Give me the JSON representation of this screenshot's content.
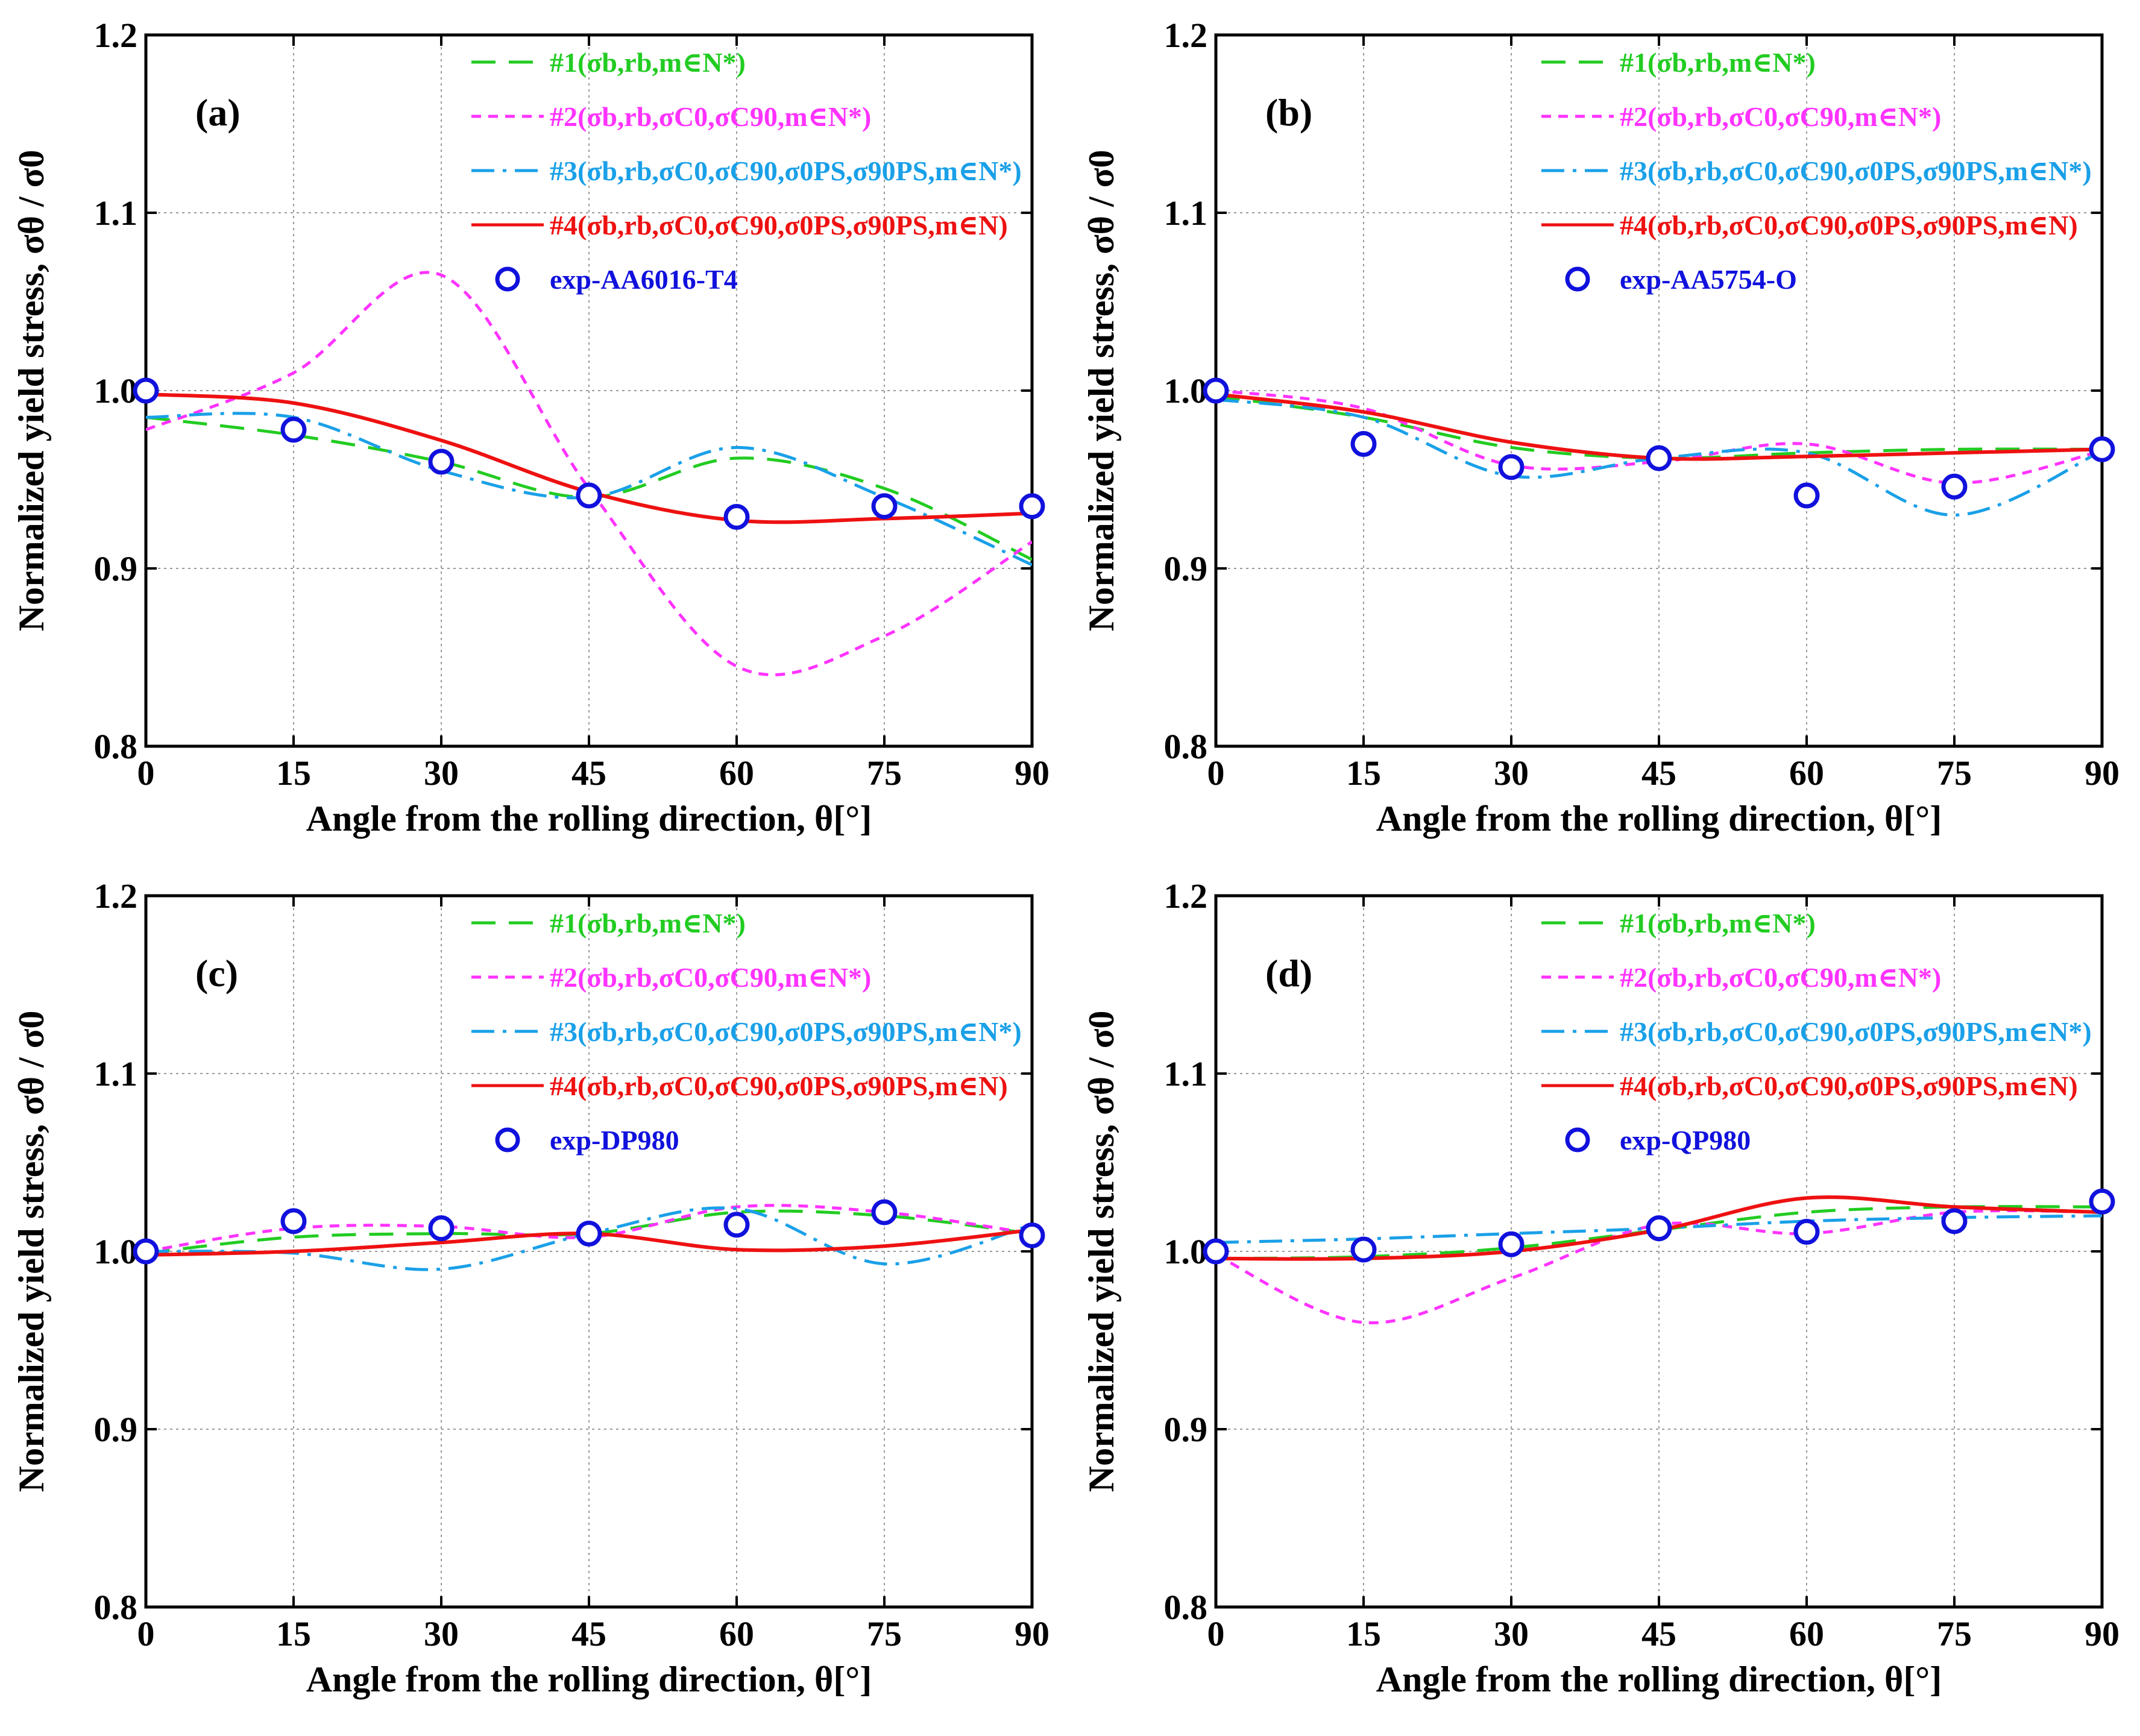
{
  "chart_data": [
    {
      "type": "line",
      "panel_label": "(a)",
      "xlabel": "Angle from the rolling direction, θ[°]",
      "ylabel": "Normalized yield stress, σθ / σ0",
      "xlim": [
        0,
        90
      ],
      "ylim": [
        0.8,
        1.2
      ],
      "xticks": [
        "0",
        "15",
        "30",
        "45",
        "60",
        "75",
        "90"
      ],
      "yticks": [
        "0.8",
        "0.9",
        "1.0",
        "1.1",
        "1.2"
      ],
      "grid": true,
      "legend_position": "top-right",
      "series": [
        {
          "name": "#1(σb,rb,m∈N*)",
          "color": "#22cc22",
          "dash": "dashed",
          "x": [
            0,
            15,
            30,
            45,
            60,
            75,
            90
          ],
          "y": [
            0.985,
            0.975,
            0.96,
            0.94,
            0.962,
            0.945,
            0.905
          ]
        },
        {
          "name": "#2(σb,rb,σC0,σC90,m∈N*)",
          "color": "#ff33ff",
          "dash": "short-dash",
          "x": [
            0,
            15,
            30,
            45,
            60,
            75,
            90
          ],
          "y": [
            0.978,
            1.01,
            1.065,
            0.945,
            0.845,
            0.862,
            0.915
          ]
        },
        {
          "name": "#3(σb,rb,σC0,σC90,σ0PS,σ90PS,m∈N*)",
          "color": "#1aa0e8",
          "dash": "dash-dot",
          "x": [
            0,
            15,
            30,
            45,
            60,
            75,
            90
          ],
          "y": [
            0.985,
            0.985,
            0.955,
            0.94,
            0.968,
            0.94,
            0.902
          ]
        },
        {
          "name": "#4(σb,rb,σC0,σC90,σ0PS,σ90PS,m∈N)",
          "color": "#ee1111",
          "dash": "solid",
          "x": [
            0,
            15,
            30,
            45,
            60,
            75,
            90
          ],
          "y": [
            0.998,
            0.993,
            0.972,
            0.943,
            0.927,
            0.928,
            0.931
          ]
        }
      ],
      "experiment": {
        "name": "exp-AA6016-T4",
        "color": "#1111dd",
        "x": [
          0,
          15,
          30,
          45,
          60,
          75,
          90
        ],
        "y": [
          1.0,
          0.978,
          0.96,
          0.941,
          0.929,
          0.935,
          0.935
        ]
      }
    },
    {
      "type": "line",
      "panel_label": "(b)",
      "xlabel": "Angle from the rolling direction, θ[°]",
      "ylabel": "Normalized yield stress, σθ / σ0",
      "xlim": [
        0,
        90
      ],
      "ylim": [
        0.8,
        1.2
      ],
      "xticks": [
        "0",
        "15",
        "30",
        "45",
        "60",
        "75",
        "90"
      ],
      "yticks": [
        "0.8",
        "0.9",
        "1.0",
        "1.1",
        "1.2"
      ],
      "grid": true,
      "legend_position": "top-right",
      "series": [
        {
          "name": "#1(σb,rb,m∈N*)",
          "color": "#22cc22",
          "dash": "dashed",
          "x": [
            0,
            15,
            30,
            45,
            60,
            75,
            90
          ],
          "y": [
            0.997,
            0.985,
            0.968,
            0.962,
            0.965,
            0.967,
            0.967
          ]
        },
        {
          "name": "#2(σb,rb,σC0,σC90,m∈N*)",
          "color": "#ff33ff",
          "dash": "short-dash",
          "x": [
            0,
            15,
            30,
            45,
            60,
            75,
            90
          ],
          "y": [
            1.0,
            0.99,
            0.958,
            0.96,
            0.97,
            0.948,
            0.966
          ]
        },
        {
          "name": "#3(σb,rb,σC0,σC90,σ0PS,σ90PS,m∈N*)",
          "color": "#1aa0e8",
          "dash": "dash-dot",
          "x": [
            0,
            15,
            30,
            45,
            60,
            75,
            90
          ],
          "y": [
            0.995,
            0.985,
            0.952,
            0.962,
            0.965,
            0.93,
            0.966
          ]
        },
        {
          "name": "#4(σb,rb,σC0,σC90,σ0PS,σ90PS,m∈N)",
          "color": "#ee1111",
          "dash": "solid",
          "x": [
            0,
            15,
            30,
            45,
            60,
            75,
            90
          ],
          "y": [
            0.998,
            0.988,
            0.971,
            0.962,
            0.963,
            0.965,
            0.967
          ]
        }
      ],
      "experiment": {
        "name": "exp-AA5754-O",
        "color": "#1111dd",
        "x": [
          0,
          15,
          30,
          45,
          60,
          75,
          90
        ],
        "y": [
          1.0,
          0.97,
          0.957,
          0.962,
          0.941,
          0.946,
          0.967
        ]
      }
    },
    {
      "type": "line",
      "panel_label": "(c)",
      "xlabel": "Angle from the rolling direction, θ[°]",
      "ylabel": "Normalized yield stress, σθ / σ0",
      "xlim": [
        0,
        90
      ],
      "ylim": [
        0.8,
        1.2
      ],
      "xticks": [
        "0",
        "15",
        "30",
        "45",
        "60",
        "75",
        "90"
      ],
      "yticks": [
        "0.8",
        "0.9",
        "1.0",
        "1.1",
        "1.2"
      ],
      "grid": true,
      "legend_position": "top-right",
      "series": [
        {
          "name": "#1(σb,rb,m∈N*)",
          "color": "#22cc22",
          "dash": "dashed",
          "x": [
            0,
            15,
            30,
            45,
            60,
            75,
            90
          ],
          "y": [
            0.999,
            1.008,
            1.01,
            1.01,
            1.022,
            1.02,
            1.01
          ]
        },
        {
          "name": "#2(σb,rb,σC0,σC90,m∈N*)",
          "color": "#ff33ff",
          "dash": "short-dash",
          "x": [
            0,
            15,
            30,
            45,
            60,
            75,
            90
          ],
          "y": [
            1.0,
            1.013,
            1.014,
            1.008,
            1.025,
            1.022,
            1.01
          ]
        },
        {
          "name": "#3(σb,rb,σC0,σC90,σ0PS,σ90PS,m∈N*)",
          "color": "#1aa0e8",
          "dash": "dash-dot",
          "x": [
            0,
            15,
            30,
            45,
            60,
            75,
            90
          ],
          "y": [
            1.0,
            0.999,
            0.99,
            1.01,
            1.024,
            0.993,
            1.015
          ]
        },
        {
          "name": "#4(σb,rb,σC0,σC90,σ0PS,σ90PS,m∈N)",
          "color": "#ee1111",
          "dash": "solid",
          "x": [
            0,
            15,
            30,
            45,
            60,
            75,
            90
          ],
          "y": [
            0.998,
            1.0,
            1.005,
            1.01,
            1.001,
            1.003,
            1.012
          ]
        }
      ],
      "experiment": {
        "name": "exp-DP980",
        "color": "#1111dd",
        "x": [
          0,
          15,
          30,
          45,
          60,
          75,
          90
        ],
        "y": [
          1.0,
          1.017,
          1.013,
          1.01,
          1.015,
          1.022,
          1.009
        ]
      }
    },
    {
      "type": "line",
      "panel_label": "(d)",
      "xlabel": "Angle from the rolling direction, θ[°]",
      "ylabel": "Normalized yield stress, σθ / σ0",
      "xlim": [
        0,
        90
      ],
      "ylim": [
        0.8,
        1.2
      ],
      "xticks": [
        "0",
        "15",
        "30",
        "45",
        "60",
        "75",
        "90"
      ],
      "yticks": [
        "0.8",
        "0.9",
        "1.0",
        "1.1",
        "1.2"
      ],
      "grid": true,
      "legend_position": "top-right",
      "series": [
        {
          "name": "#1(σb,rb,m∈N*)",
          "color": "#22cc22",
          "dash": "dashed",
          "x": [
            0,
            15,
            30,
            45,
            60,
            75,
            90
          ],
          "y": [
            0.996,
            0.997,
            1.002,
            1.012,
            1.022,
            1.025,
            1.025
          ]
        },
        {
          "name": "#2(σb,rb,σC0,σC90,m∈N*)",
          "color": "#ff33ff",
          "dash": "short-dash",
          "x": [
            0,
            15,
            30,
            45,
            60,
            75,
            90
          ],
          "y": [
            0.998,
            0.96,
            0.985,
            1.015,
            1.01,
            1.022,
            1.022
          ]
        },
        {
          "name": "#3(σb,rb,σC0,σC90,σ0PS,σ90PS,m∈N*)",
          "color": "#1aa0e8",
          "dash": "dash-dot",
          "x": [
            0,
            15,
            30,
            45,
            60,
            75,
            90
          ],
          "y": [
            1.005,
            1.007,
            1.01,
            1.013,
            1.017,
            1.019,
            1.02
          ]
        },
        {
          "name": "#4(σb,rb,σC0,σC90,σ0PS,σ90PS,m∈N)",
          "color": "#ee1111",
          "dash": "solid",
          "x": [
            0,
            15,
            30,
            45,
            60,
            75,
            90
          ],
          "y": [
            0.996,
            0.996,
            1.0,
            1.012,
            1.03,
            1.025,
            1.022
          ]
        }
      ],
      "experiment": {
        "name": "exp-QP980",
        "color": "#1111dd",
        "x": [
          0,
          15,
          30,
          45,
          60,
          75,
          90
        ],
        "y": [
          1.0,
          1.001,
          1.004,
          1.013,
          1.011,
          1.017,
          1.028
        ]
      }
    }
  ]
}
